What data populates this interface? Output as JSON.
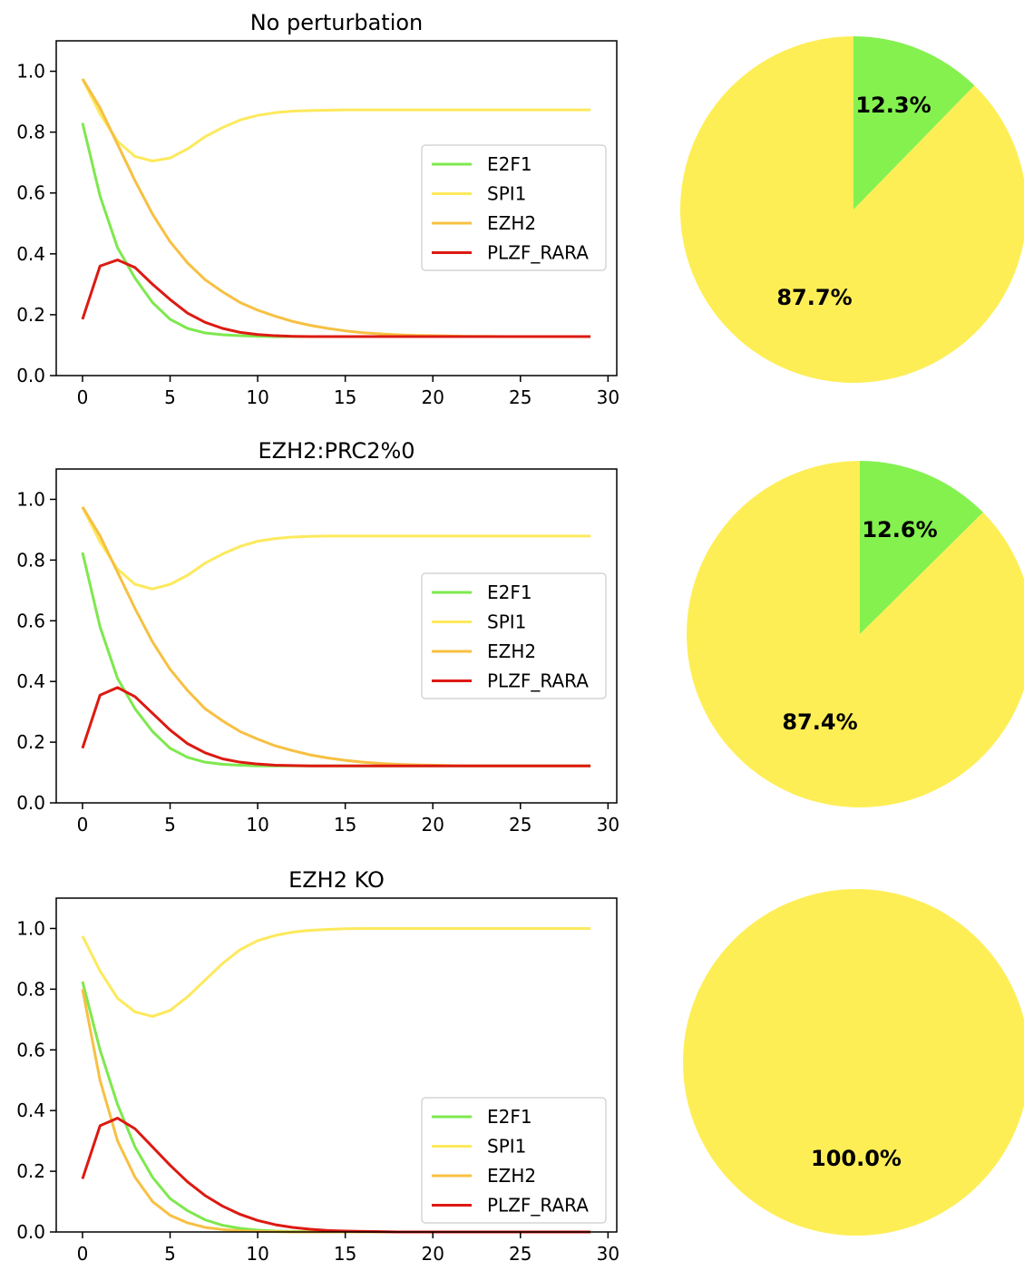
{
  "legend_colors": {
    "E2F1": "#7ee84e",
    "SPI1": "#fde95c",
    "EZH2": "#f7c042",
    "PLZF_RARA": "#dc1a12"
  },
  "chart_data": [
    {
      "type": "line",
      "title": "No perturbation",
      "xlabel": "",
      "ylabel": "",
      "xlim": [
        -1.5,
        30.5
      ],
      "ylim": [
        0,
        1.1
      ],
      "xticks": [
        "0",
        "5",
        "10",
        "15",
        "20",
        "25",
        "30"
      ],
      "yticks": [
        "0.0",
        "0.2",
        "0.4",
        "0.6",
        "0.8",
        "1.0"
      ],
      "legend_position": "center-right",
      "x_range": [
        0,
        29
      ],
      "series": [
        {
          "name": "E2F1",
          "color": "#7ee84e",
          "values": [
            0.83,
            0.59,
            0.42,
            0.32,
            0.24,
            0.185,
            0.155,
            0.14,
            0.134,
            0.131,
            0.129,
            0.128,
            0.128,
            0.128,
            0.128,
            0.128,
            0.128,
            0.128,
            0.128,
            0.128,
            0.128,
            0.128,
            0.128,
            0.128,
            0.128,
            0.128,
            0.128,
            0.128,
            0.128,
            0.128
          ]
        },
        {
          "name": "SPI1",
          "color": "#fde95c",
          "values": [
            0.975,
            0.86,
            0.77,
            0.72,
            0.705,
            0.715,
            0.745,
            0.785,
            0.815,
            0.84,
            0.855,
            0.864,
            0.869,
            0.871,
            0.872,
            0.873,
            0.873,
            0.873,
            0.873,
            0.873,
            0.873,
            0.873,
            0.873,
            0.873,
            0.873,
            0.873,
            0.873,
            0.873,
            0.873,
            0.873
          ]
        },
        {
          "name": "EZH2",
          "color": "#f7c042",
          "values": [
            0.975,
            0.88,
            0.76,
            0.64,
            0.53,
            0.44,
            0.37,
            0.315,
            0.275,
            0.24,
            0.215,
            0.195,
            0.178,
            0.165,
            0.155,
            0.147,
            0.141,
            0.137,
            0.134,
            0.132,
            0.131,
            0.13,
            0.129,
            0.129,
            0.128,
            0.128,
            0.128,
            0.128,
            0.128,
            0.128
          ]
        },
        {
          "name": "PLZF_RARA",
          "color": "#dc1a12",
          "values": [
            0.185,
            0.36,
            0.38,
            0.355,
            0.3,
            0.25,
            0.205,
            0.175,
            0.155,
            0.142,
            0.135,
            0.131,
            0.129,
            0.128,
            0.128,
            0.128,
            0.128,
            0.128,
            0.128,
            0.128,
            0.128,
            0.128,
            0.128,
            0.128,
            0.128,
            0.128,
            0.128,
            0.128,
            0.128,
            0.128
          ]
        }
      ]
    },
    {
      "type": "pie",
      "slices": [
        {
          "label": "12.3%",
          "value": 12.3,
          "color": "#84f14f"
        },
        {
          "label": "87.7%",
          "value": 87.7,
          "color": "#feee56"
        }
      ]
    },
    {
      "type": "line",
      "title": "EZH2:PRC2%0",
      "xlabel": "",
      "ylabel": "",
      "xlim": [
        -1.5,
        30.5
      ],
      "ylim": [
        0,
        1.1
      ],
      "xticks": [
        "0",
        "5",
        "10",
        "15",
        "20",
        "25",
        "30"
      ],
      "yticks": [
        "0.0",
        "0.2",
        "0.4",
        "0.6",
        "0.8",
        "1.0"
      ],
      "legend_position": "center-right",
      "x_range": [
        0,
        29
      ],
      "series": [
        {
          "name": "E2F1",
          "color": "#7ee84e",
          "values": [
            0.825,
            0.58,
            0.41,
            0.31,
            0.235,
            0.18,
            0.15,
            0.134,
            0.127,
            0.124,
            0.122,
            0.122,
            0.122,
            0.122,
            0.122,
            0.122,
            0.122,
            0.122,
            0.122,
            0.122,
            0.122,
            0.122,
            0.122,
            0.122,
            0.122,
            0.122,
            0.122,
            0.122,
            0.122,
            0.122
          ]
        },
        {
          "name": "SPI1",
          "color": "#fde95c",
          "values": [
            0.975,
            0.86,
            0.77,
            0.72,
            0.705,
            0.72,
            0.75,
            0.79,
            0.82,
            0.845,
            0.862,
            0.871,
            0.876,
            0.878,
            0.879,
            0.879,
            0.879,
            0.879,
            0.879,
            0.879,
            0.879,
            0.879,
            0.879,
            0.879,
            0.879,
            0.879,
            0.879,
            0.879,
            0.879,
            0.879
          ]
        },
        {
          "name": "EZH2",
          "color": "#f7c042",
          "values": [
            0.975,
            0.88,
            0.76,
            0.64,
            0.53,
            0.44,
            0.37,
            0.31,
            0.27,
            0.235,
            0.21,
            0.188,
            0.172,
            0.158,
            0.148,
            0.14,
            0.134,
            0.13,
            0.127,
            0.125,
            0.124,
            0.123,
            0.122,
            0.122,
            0.122,
            0.122,
            0.122,
            0.122,
            0.122,
            0.122
          ]
        },
        {
          "name": "PLZF_RARA",
          "color": "#dc1a12",
          "values": [
            0.18,
            0.355,
            0.38,
            0.35,
            0.295,
            0.24,
            0.195,
            0.165,
            0.145,
            0.134,
            0.128,
            0.124,
            0.123,
            0.122,
            0.122,
            0.122,
            0.122,
            0.122,
            0.122,
            0.122,
            0.122,
            0.122,
            0.122,
            0.122,
            0.122,
            0.122,
            0.122,
            0.122,
            0.122,
            0.122
          ]
        }
      ]
    },
    {
      "type": "pie",
      "slices": [
        {
          "label": "12.6%",
          "value": 12.6,
          "color": "#84f14f"
        },
        {
          "label": "87.4%",
          "value": 87.4,
          "color": "#feee56"
        }
      ]
    },
    {
      "type": "line",
      "title": "EZH2 KO",
      "xlabel": "",
      "ylabel": "",
      "xlim": [
        -1.5,
        30.5
      ],
      "ylim": [
        0,
        1.1
      ],
      "xticks": [
        "0",
        "5",
        "10",
        "15",
        "20",
        "25",
        "30"
      ],
      "yticks": [
        "0.0",
        "0.2",
        "0.4",
        "0.6",
        "0.8",
        "1.0"
      ],
      "legend_position": "lower-right",
      "x_range": [
        0,
        29
      ],
      "series": [
        {
          "name": "E2F1",
          "color": "#7ee84e",
          "values": [
            0.825,
            0.6,
            0.42,
            0.28,
            0.18,
            0.11,
            0.07,
            0.04,
            0.022,
            0.012,
            0.006,
            0.003,
            0.002,
            0.001,
            0.0,
            0.0,
            0.0,
            0.0,
            0.0,
            0.0,
            0.0,
            0.0,
            0.0,
            0.0,
            0.0,
            0.0,
            0.0,
            0.0,
            0.0,
            0.0
          ]
        },
        {
          "name": "SPI1",
          "color": "#fde95c",
          "values": [
            0.975,
            0.86,
            0.77,
            0.725,
            0.71,
            0.73,
            0.775,
            0.83,
            0.885,
            0.93,
            0.96,
            0.977,
            0.988,
            0.994,
            0.997,
            0.999,
            1.0,
            1.0,
            1.0,
            1.0,
            1.0,
            1.0,
            1.0,
            1.0,
            1.0,
            1.0,
            1.0,
            1.0,
            1.0,
            1.0
          ]
        },
        {
          "name": "EZH2",
          "color": "#f7c042",
          "values": [
            0.8,
            0.5,
            0.3,
            0.18,
            0.1,
            0.055,
            0.03,
            0.015,
            0.008,
            0.004,
            0.002,
            0.001,
            0.0,
            0.0,
            0.0,
            0.0,
            0.0,
            0.0,
            0.0,
            0.0,
            0.0,
            0.0,
            0.0,
            0.0,
            0.0,
            0.0,
            0.0,
            0.0,
            0.0,
            0.0
          ]
        },
        {
          "name": "PLZF_RARA",
          "color": "#dc1a12",
          "values": [
            0.175,
            0.35,
            0.375,
            0.34,
            0.28,
            0.22,
            0.165,
            0.12,
            0.085,
            0.058,
            0.038,
            0.024,
            0.015,
            0.009,
            0.005,
            0.003,
            0.002,
            0.001,
            0.0,
            0.0,
            0.0,
            0.0,
            0.0,
            0.0,
            0.0,
            0.0,
            0.0,
            0.0,
            0.0,
            0.0
          ]
        }
      ]
    },
    {
      "type": "pie",
      "slices": [
        {
          "label": "100.0%",
          "value": 100.0,
          "color": "#feee56"
        }
      ]
    }
  ]
}
